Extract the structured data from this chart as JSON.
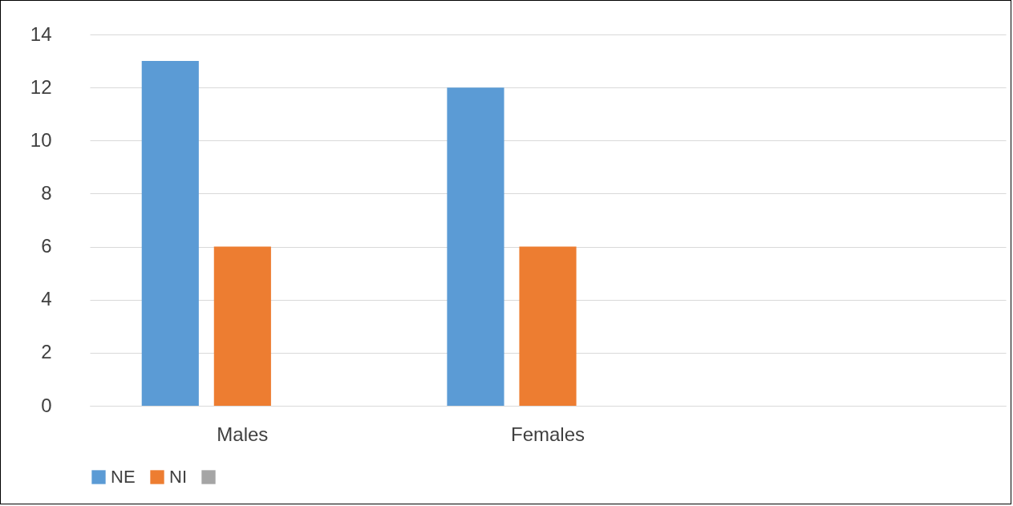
{
  "chart_data": {
    "type": "bar",
    "categories": [
      "Males",
      "Females",
      null
    ],
    "series": [
      {
        "name": "NE",
        "color": "#5b9bd5",
        "values": [
          13,
          12,
          null
        ]
      },
      {
        "name": "NI",
        "color": "#ed7d31",
        "values": [
          6,
          6,
          null
        ]
      },
      {
        "color": "#a5a5a5",
        "values": [
          null,
          null,
          null
        ]
      }
    ],
    "ylim": [
      0,
      14
    ],
    "yticks": [
      0,
      2,
      4,
      6,
      8,
      10,
      12,
      14
    ],
    "grid": "y",
    "legend": "bottom"
  }
}
